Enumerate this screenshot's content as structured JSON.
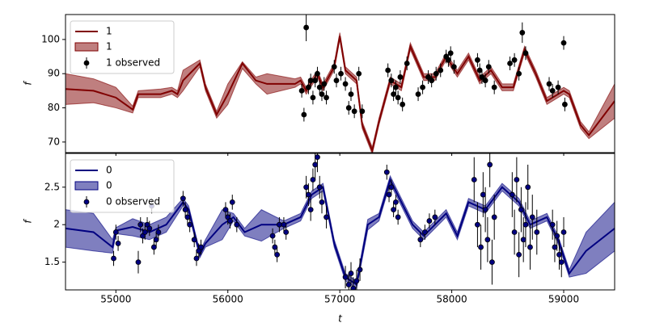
{
  "chart_data": [
    {
      "type": "line",
      "ylabel": "f",
      "legend": "upper left",
      "xlim": [
        54550,
        59455
      ],
      "ylim": [
        66.9,
        107.3
      ],
      "yticks": [
        70,
        80,
        90,
        100
      ],
      "series": [
        {
          "name": "1",
          "color": "#800000",
          "x": [
            54550,
            54800,
            55000,
            55150,
            55200,
            55400,
            55500,
            55550,
            55600,
            55750,
            55800,
            55900,
            56000,
            56130,
            56250,
            56350,
            56600,
            56650,
            56700,
            56800,
            56850,
            56950,
            57000,
            57050,
            57150,
            57200,
            57290,
            57350,
            57450,
            57550,
            57630,
            57750,
            57850,
            57950,
            58050,
            58150,
            58250,
            58350,
            58450,
            58550,
            58650,
            58750,
            58850,
            59000,
            59050,
            59150,
            59225,
            59455
          ],
          "values": [
            85.5,
            85,
            83,
            79.5,
            84,
            84,
            85,
            84,
            88,
            93,
            86,
            78,
            84,
            93,
            88,
            87,
            87,
            88,
            85,
            90,
            86,
            92,
            101,
            91,
            88,
            75,
            67.5,
            76,
            88,
            86,
            98,
            89,
            89,
            95,
            90,
            95,
            88,
            91,
            86,
            86,
            97,
            90,
            82,
            85,
            84,
            75,
            72,
            82
          ]
        }
      ],
      "band": {
        "name": "1",
        "color": "#800000",
        "lower": [
          81,
          81.5,
          80,
          78.5,
          83,
          83,
          84,
          83,
          85,
          92,
          85,
          77,
          81,
          91.5,
          87,
          84,
          86,
          87,
          84,
          89,
          85,
          91,
          100,
          90,
          87,
          74,
          66.5,
          75,
          87,
          85,
          97,
          88,
          88,
          94,
          89,
          94,
          87,
          90,
          85,
          85,
          96,
          89,
          81,
          84,
          83,
          74,
          71,
          77
        ],
        "upper": [
          90,
          88.5,
          86,
          80.5,
          85,
          85.5,
          86,
          85,
          91,
          94,
          87,
          79,
          87,
          93.5,
          89,
          90,
          88.5,
          89,
          86,
          91,
          87,
          93,
          102,
          92,
          89,
          76,
          68.5,
          77,
          89,
          87,
          99,
          90,
          90,
          96,
          91,
          96,
          89,
          92,
          87,
          87,
          98,
          91,
          83,
          86,
          85,
          76,
          73,
          87
        ]
      },
      "observed": {
        "name": "1 observed",
        "color": "#000000",
        "x": [
          56660,
          56680,
          56700,
          56720,
          56740,
          56760,
          56780,
          56800,
          56820,
          56840,
          56860,
          56880,
          56950,
          56970,
          57010,
          57050,
          57080,
          57100,
          57130,
          57170,
          57200,
          57430,
          57460,
          57480,
          57500,
          57520,
          57540,
          57560,
          57600,
          57700,
          57740,
          57790,
          57820,
          57860,
          57900,
          57950,
          57970,
          57990,
          58020,
          58230,
          58250,
          58270,
          58300,
          58330,
          58380,
          58520,
          58560,
          58600,
          58630,
          58660,
          58870,
          58900,
          58950,
          59000,
          59010
        ],
        "values": [
          85,
          78,
          103.5,
          86,
          88,
          83,
          88,
          90,
          86,
          84,
          87,
          83,
          92,
          88,
          90,
          87,
          80,
          84,
          79,
          90,
          79,
          91,
          88,
          84,
          86,
          83,
          89,
          81,
          93,
          84,
          86,
          89,
          88,
          90,
          91,
          95,
          94,
          96,
          92,
          94,
          91,
          89,
          88,
          92,
          86,
          93,
          94,
          90,
          102,
          96,
          87,
          85,
          86,
          99,
          81
        ],
        "errors": [
          2,
          2,
          4,
          2,
          2,
          2,
          2,
          2,
          2,
          2,
          2,
          2,
          2,
          2,
          2,
          2,
          2,
          2,
          2,
          2,
          2,
          2,
          2,
          2,
          2,
          2,
          2,
          2,
          2,
          2,
          2,
          2,
          2,
          2,
          2,
          2,
          2,
          2,
          2,
          2,
          2,
          2,
          2,
          2,
          2,
          2,
          2,
          2,
          3,
          2,
          2,
          2,
          2,
          2,
          2
        ]
      }
    },
    {
      "type": "line",
      "ylabel": "f",
      "xlabel": "t",
      "legend": "upper left",
      "xlim": [
        54550,
        59455
      ],
      "xticks": [
        55000,
        56000,
        57000,
        58000,
        59000
      ],
      "ylim": [
        1.13,
        2.95
      ],
      "yticks": [
        1.5,
        2.0,
        2.5
      ],
      "series": [
        {
          "name": "0",
          "color": "#000080",
          "x": [
            54550,
            54800,
            54970,
            55000,
            55150,
            55300,
            55450,
            55600,
            55650,
            55750,
            55800,
            55950,
            56050,
            56150,
            56300,
            56500,
            56650,
            56750,
            56850,
            56950,
            57050,
            57150,
            57250,
            57350,
            57450,
            57550,
            57650,
            57750,
            57850,
            57950,
            58050,
            58150,
            58300,
            58450,
            58600,
            58700,
            58850,
            58950,
            59050,
            59200,
            59455
          ],
          "values": [
            1.95,
            1.9,
            1.7,
            1.92,
            1.97,
            1.9,
            2.0,
            2.3,
            2.2,
            1.6,
            1.75,
            2.0,
            2.1,
            1.9,
            2.0,
            2.0,
            2.1,
            2.4,
            2.5,
            1.75,
            1.3,
            1.2,
            2.0,
            2.1,
            2.6,
            2.3,
            2.0,
            1.85,
            2.0,
            2.15,
            1.85,
            2.3,
            2.2,
            2.5,
            2.3,
            2.0,
            2.1,
            1.8,
            1.35,
            1.65,
            1.95
          ]
        }
      ],
      "band": {
        "name": "0",
        "color": "#000080",
        "lower": [
          1.7,
          1.65,
          1.62,
          1.88,
          1.85,
          1.8,
          1.9,
          2.25,
          2.15,
          1.56,
          1.7,
          1.8,
          2.05,
          1.85,
          1.78,
          1.95,
          2.05,
          2.35,
          2.45,
          1.7,
          1.25,
          1.15,
          1.93,
          2.05,
          2.55,
          2.25,
          1.95,
          1.8,
          1.95,
          2.1,
          1.8,
          2.25,
          2.15,
          2.45,
          2.25,
          1.95,
          2.05,
          1.75,
          1.3,
          1.35,
          1.65
        ],
        "upper": [
          2.2,
          2.15,
          1.8,
          1.96,
          2.08,
          2.0,
          2.1,
          2.35,
          2.25,
          1.64,
          1.8,
          2.2,
          2.15,
          1.95,
          2.2,
          2.05,
          2.15,
          2.45,
          2.55,
          1.8,
          1.35,
          1.25,
          2.07,
          2.15,
          2.65,
          2.35,
          2.05,
          1.9,
          2.05,
          2.2,
          1.9,
          2.35,
          2.25,
          2.55,
          2.35,
          2.05,
          2.15,
          1.85,
          1.4,
          1.9,
          2.3
        ]
      },
      "observed": {
        "name": "0 observed",
        "color": "#000080",
        "x": [
          54980,
          55000,
          55020,
          55200,
          55220,
          55240,
          55260,
          55280,
          55300,
          55320,
          55340,
          55360,
          55380,
          55600,
          55620,
          55640,
          55660,
          55700,
          55720,
          55740,
          55760,
          55980,
          56000,
          56020,
          56040,
          56080,
          56400,
          56420,
          56440,
          56460,
          56500,
          56520,
          56700,
          56720,
          56740,
          56760,
          56780,
          56800,
          56820,
          56840,
          56880,
          57050,
          57080,
          57100,
          57120,
          57150,
          57180,
          57420,
          57440,
          57460,
          57480,
          57500,
          57520,
          57720,
          57760,
          57800,
          57850,
          58200,
          58230,
          58260,
          58280,
          58300,
          58320,
          58340,
          58360,
          58380,
          58540,
          58560,
          58580,
          58600,
          58620,
          58640,
          58660,
          58680,
          58700,
          58720,
          58760,
          58900,
          58920,
          58940,
          58960,
          58980,
          59000
        ],
        "values": [
          1.55,
          1.9,
          1.75,
          1.5,
          2.0,
          1.85,
          1.9,
          2.0,
          1.95,
          2.25,
          1.7,
          1.8,
          1.9,
          2.35,
          2.2,
          2.1,
          2.0,
          1.8,
          1.55,
          1.65,
          1.7,
          2.2,
          2.1,
          2.05,
          2.3,
          2.0,
          1.85,
          1.7,
          1.6,
          2.0,
          2.0,
          1.9,
          2.5,
          2.4,
          2.2,
          2.6,
          2.8,
          2.9,
          2.5,
          2.3,
          2.1,
          1.3,
          1.2,
          1.35,
          1.15,
          1.25,
          1.4,
          2.7,
          2.4,
          2.5,
          2.2,
          2.3,
          2.1,
          1.8,
          1.9,
          2.05,
          2.1,
          2.6,
          2.0,
          1.7,
          2.4,
          2.2,
          1.8,
          2.8,
          1.5,
          2.1,
          2.4,
          1.9,
          2.6,
          1.6,
          2.2,
          1.8,
          2.0,
          2.5,
          1.7,
          2.1,
          1.9,
          2.0,
          1.7,
          1.85,
          1.6,
          1.5,
          1.9
        ],
        "errors": [
          0.1,
          0.1,
          0.1,
          0.15,
          0.1,
          0.1,
          0.1,
          0.1,
          0.1,
          0.1,
          0.1,
          0.1,
          0.1,
          0.1,
          0.1,
          0.1,
          0.1,
          0.1,
          0.1,
          0.1,
          0.1,
          0.1,
          0.1,
          0.1,
          0.1,
          0.1,
          0.1,
          0.1,
          0.1,
          0.1,
          0.1,
          0.1,
          0.15,
          0.15,
          0.15,
          0.15,
          0.2,
          0.2,
          0.15,
          0.15,
          0.15,
          0.15,
          0.15,
          0.15,
          0.15,
          0.15,
          0.15,
          0.1,
          0.1,
          0.1,
          0.1,
          0.1,
          0.1,
          0.1,
          0.1,
          0.1,
          0.1,
          0.3,
          0.3,
          0.3,
          0.3,
          0.3,
          0.3,
          0.3,
          0.3,
          0.3,
          0.3,
          0.3,
          0.3,
          0.3,
          0.3,
          0.3,
          0.3,
          0.3,
          0.3,
          0.3,
          0.3,
          0.2,
          0.2,
          0.2,
          0.2,
          0.2,
          0.2
        ]
      }
    }
  ]
}
